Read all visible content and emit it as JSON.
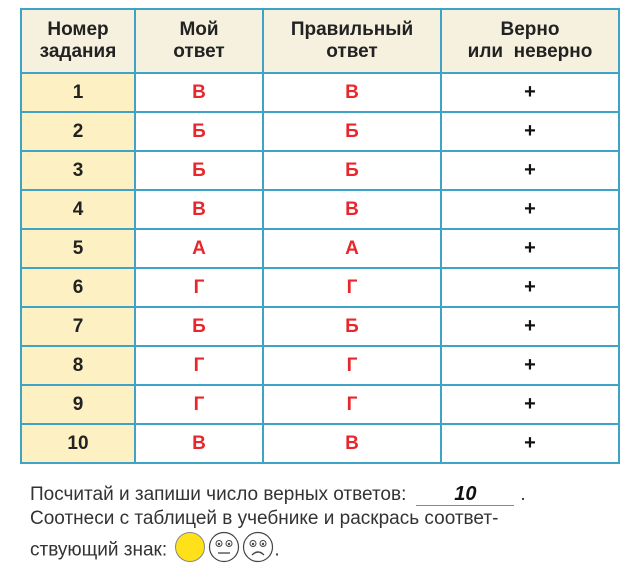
{
  "table": {
    "headers": {
      "number": [
        "Номер",
        "задания"
      ],
      "my_answer": [
        "Мой",
        "ответ"
      ],
      "correct_answer": [
        "Правильный",
        "ответ"
      ],
      "verdict": [
        "Верно",
        "или  неверно"
      ]
    },
    "rows": [
      {
        "number": "1",
        "mine": "В",
        "correct": "В",
        "verdict": "+"
      },
      {
        "number": "2",
        "mine": "Б",
        "correct": "Б",
        "verdict": "+"
      },
      {
        "number": "3",
        "mine": "Б",
        "correct": "Б",
        "verdict": "+"
      },
      {
        "number": "4",
        "mine": "В",
        "correct": "В",
        "verdict": "+"
      },
      {
        "number": "5",
        "mine": "А",
        "correct": "А",
        "verdict": "+"
      },
      {
        "number": "6",
        "mine": "Г",
        "correct": "Г",
        "verdict": "+"
      },
      {
        "number": "7",
        "mine": "Б",
        "correct": "Б",
        "verdict": "+"
      },
      {
        "number": "8",
        "mine": "Г",
        "correct": "Г",
        "verdict": "+"
      },
      {
        "number": "9",
        "mine": "Г",
        "correct": "Г",
        "verdict": "+"
      },
      {
        "number": "10",
        "mine": "В",
        "correct": "В",
        "verdict": "+"
      }
    ]
  },
  "footer": {
    "line1": "Посчитай и запиши число верных ответов:",
    "count_value": "10",
    "line1_end": ".",
    "line2": "Соотнеси с таблицей в учебнике и раскрась соответ-",
    "line3": "ствующий знак:",
    "line3_end": "."
  },
  "colors": {
    "border": "#3fa3c8",
    "number_cell": "#fdf0c2",
    "header_cell": "#f6f1df",
    "answer_text": "#e8262c",
    "filled_circle": "#ffe11a"
  },
  "icons": [
    "filled-circle-icon",
    "neutral-face-icon",
    "sad-face-icon"
  ]
}
